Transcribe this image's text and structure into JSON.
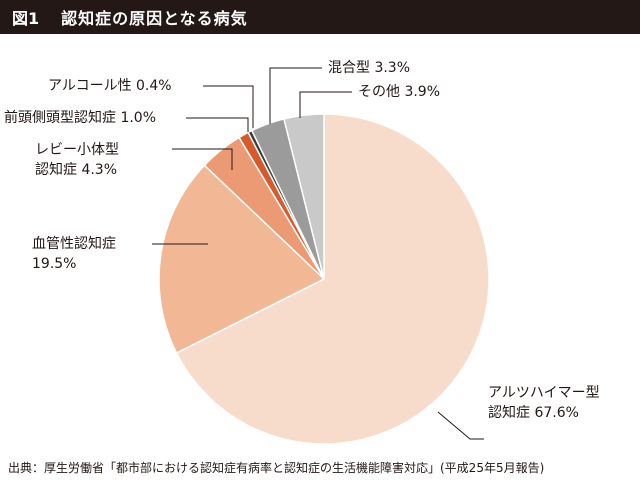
{
  "figure": {
    "number": "図1",
    "title": "認知症の原因となる病気",
    "source": "出典：厚生労働省「都市部における認知症有病率と認知症の生活機能障害対応」(平成25年5月報告)"
  },
  "chart_data": {
    "type": "pie",
    "unit": "%",
    "start": "12 o'clock",
    "direction": "clockwise",
    "slices": [
      {
        "name": "アルツハイマー型認知症",
        "label_lines": [
          "アルツハイマー型",
          "認知症 67.6%"
        ],
        "value": 67.6,
        "color": "#f8dccb"
      },
      {
        "name": "血管性認知症",
        "label_lines": [
          "血管性認知症",
          "19.5%"
        ],
        "value": 19.5,
        "color": "#f2b795"
      },
      {
        "name": "レビー小体型認知症",
        "label_lines": [
          "レビー小体型",
          "認知症 4.3%"
        ],
        "value": 4.3,
        "color": "#ec9a74"
      },
      {
        "name": "前頭側頭型認知症",
        "label_lines": [
          "前頭側頭型認知症 1.0%"
        ],
        "value": 1.0,
        "color": "#d85a2b"
      },
      {
        "name": "アルコール性",
        "label_lines": [
          "アルコール性 0.4%"
        ],
        "value": 0.4,
        "color": "#3d3a39"
      },
      {
        "name": "混合型",
        "label_lines": [
          "混合型 3.3%"
        ],
        "value": 3.3,
        "color": "#9b9b9b"
      },
      {
        "name": "その他",
        "label_lines": [
          "その他 3.9%"
        ],
        "value": 3.9,
        "color": "#c9c9c9"
      }
    ]
  }
}
